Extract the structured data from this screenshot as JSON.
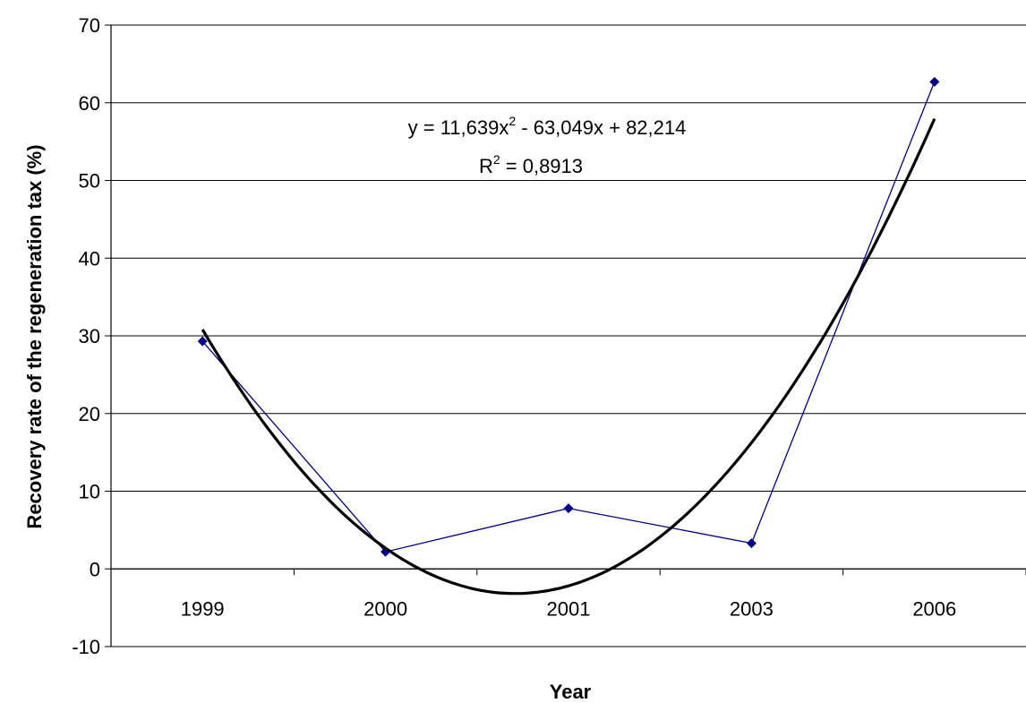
{
  "chart_data": {
    "type": "line",
    "xlabel": "Year",
    "ylabel": "Recovery rate of the regeneration tax (%)",
    "categories": [
      "1999",
      "2000",
      "2001",
      "2003",
      "2006"
    ],
    "ylim": [
      -10,
      70
    ],
    "ytick_step": 10,
    "grid": "horizontal",
    "legend": "none",
    "series": [
      {
        "values": [
          29.3,
          2.2,
          7.8,
          3.3,
          62.7
        ],
        "color": "#00008B",
        "marker": "diamond"
      }
    ],
    "trendline": {
      "type": "polynomial",
      "order": 2,
      "coefficients": [
        11.639,
        -63.049,
        82.214
      ],
      "color": "#000000",
      "equation_label": {
        "prefix": "y = 11,639x",
        "exp": "2",
        "suffix": " - 63,049x + 82,214"
      },
      "r2_label": {
        "prefix": "R",
        "exp": "2",
        "suffix": " = 0,8913"
      }
    }
  }
}
